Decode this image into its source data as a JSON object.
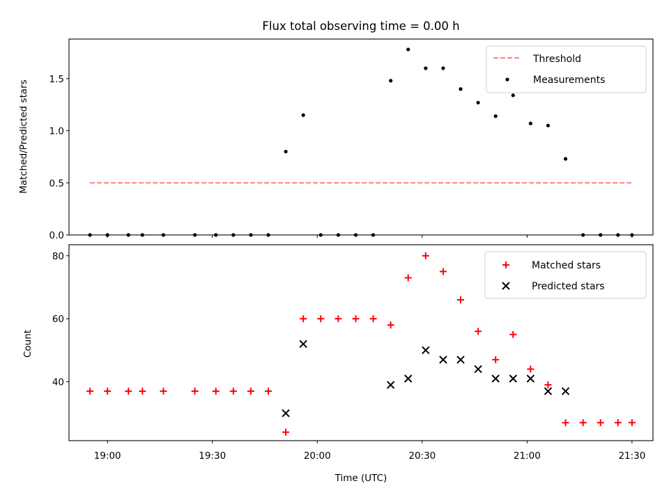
{
  "chart_data": [
    {
      "type": "scatter",
      "title": "Flux total observing time = 0.00 h",
      "xlabel": "",
      "ylabel": "Matched/Predicted stars",
      "xlim": [
        "18:49",
        "21:36"
      ],
      "ylim": [
        0,
        1.88
      ],
      "grid": false,
      "legend_position": "top-right",
      "y_ticks": [
        "0.0",
        "0.5",
        "1.0",
        "1.5"
      ],
      "threshold": {
        "name": "Threshold",
        "value": 0.5,
        "x_start": "18:55",
        "x_end": "21:30",
        "color": "#ff7f7f",
        "style": "dashed"
      },
      "series": [
        {
          "name": "Measurements",
          "color": "#000000",
          "marker": "dot",
          "points": [
            {
              "x": "18:55",
              "y": 0.0
            },
            {
              "x": "19:00",
              "y": 0.0
            },
            {
              "x": "19:06",
              "y": 0.0
            },
            {
              "x": "19:10",
              "y": 0.0
            },
            {
              "x": "19:16",
              "y": 0.0
            },
            {
              "x": "19:25",
              "y": 0.0
            },
            {
              "x": "19:31",
              "y": 0.0
            },
            {
              "x": "19:36",
              "y": 0.0
            },
            {
              "x": "19:41",
              "y": 0.0
            },
            {
              "x": "19:46",
              "y": 0.0
            },
            {
              "x": "19:51",
              "y": 0.8
            },
            {
              "x": "19:56",
              "y": 1.15
            },
            {
              "x": "20:01",
              "y": 0.0
            },
            {
              "x": "20:06",
              "y": 0.0
            },
            {
              "x": "20:11",
              "y": 0.0
            },
            {
              "x": "20:16",
              "y": 0.0
            },
            {
              "x": "20:21",
              "y": 1.48
            },
            {
              "x": "20:26",
              "y": 1.78
            },
            {
              "x": "20:31",
              "y": 1.6
            },
            {
              "x": "20:36",
              "y": 1.6
            },
            {
              "x": "20:41",
              "y": 1.4
            },
            {
              "x": "20:46",
              "y": 1.27
            },
            {
              "x": "20:51",
              "y": 1.14
            },
            {
              "x": "20:56",
              "y": 1.34
            },
            {
              "x": "21:01",
              "y": 1.07
            },
            {
              "x": "21:06",
              "y": 1.05
            },
            {
              "x": "21:11",
              "y": 0.73
            },
            {
              "x": "21:16",
              "y": 0.0
            },
            {
              "x": "21:21",
              "y": 0.0
            },
            {
              "x": "21:26",
              "y": 0.0
            },
            {
              "x": "21:30",
              "y": 0.0
            }
          ]
        }
      ]
    },
    {
      "type": "scatter",
      "title": "",
      "xlabel": "Time (UTC)",
      "ylabel": "Count",
      "xlim": [
        "18:49",
        "21:36"
      ],
      "ylim": [
        21.3,
        83.5
      ],
      "grid": false,
      "legend_position": "top-right",
      "y_ticks": [
        "40",
        "60",
        "80"
      ],
      "x_ticks": [
        "19:00",
        "19:30",
        "20:00",
        "20:30",
        "21:00",
        "21:30"
      ],
      "series": [
        {
          "name": "Matched stars",
          "color": "#ff0000",
          "marker": "plus",
          "points": [
            {
              "x": "18:55",
              "y": 37
            },
            {
              "x": "19:00",
              "y": 37
            },
            {
              "x": "19:06",
              "y": 37
            },
            {
              "x": "19:10",
              "y": 37
            },
            {
              "x": "19:16",
              "y": 37
            },
            {
              "x": "19:25",
              "y": 37
            },
            {
              "x": "19:31",
              "y": 37
            },
            {
              "x": "19:36",
              "y": 37
            },
            {
              "x": "19:41",
              "y": 37
            },
            {
              "x": "19:46",
              "y": 37
            },
            {
              "x": "19:51",
              "y": 24
            },
            {
              "x": "19:56",
              "y": 60
            },
            {
              "x": "20:01",
              "y": 60
            },
            {
              "x": "20:06",
              "y": 60
            },
            {
              "x": "20:11",
              "y": 60
            },
            {
              "x": "20:16",
              "y": 60
            },
            {
              "x": "20:21",
              "y": 58
            },
            {
              "x": "20:26",
              "y": 73
            },
            {
              "x": "20:31",
              "y": 80
            },
            {
              "x": "20:36",
              "y": 75
            },
            {
              "x": "20:41",
              "y": 66
            },
            {
              "x": "20:46",
              "y": 56
            },
            {
              "x": "20:51",
              "y": 47
            },
            {
              "x": "20:56",
              "y": 55
            },
            {
              "x": "21:01",
              "y": 44
            },
            {
              "x": "21:06",
              "y": 39
            },
            {
              "x": "21:11",
              "y": 27
            },
            {
              "x": "21:16",
              "y": 27
            },
            {
              "x": "21:21",
              "y": 27
            },
            {
              "x": "21:26",
              "y": 27
            },
            {
              "x": "21:30",
              "y": 27
            }
          ]
        },
        {
          "name": "Predicted stars",
          "color": "#000000",
          "marker": "x",
          "points": [
            {
              "x": "19:51",
              "y": 30
            },
            {
              "x": "19:56",
              "y": 52
            },
            {
              "x": "20:21",
              "y": 39
            },
            {
              "x": "20:26",
              "y": 41
            },
            {
              "x": "20:31",
              "y": 50
            },
            {
              "x": "20:36",
              "y": 47
            },
            {
              "x": "20:41",
              "y": 47
            },
            {
              "x": "20:46",
              "y": 44
            },
            {
              "x": "20:51",
              "y": 41
            },
            {
              "x": "20:56",
              "y": 41
            },
            {
              "x": "21:01",
              "y": 41
            },
            {
              "x": "21:06",
              "y": 37
            },
            {
              "x": "21:11",
              "y": 37
            }
          ]
        }
      ]
    }
  ]
}
